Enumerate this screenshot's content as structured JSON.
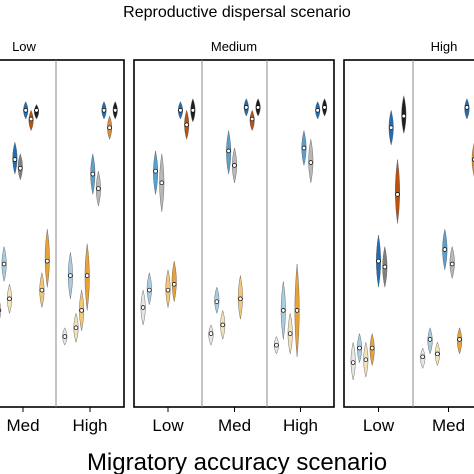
{
  "chart_data": {
    "type": "violin",
    "title": "Reproductive dispersal scenario",
    "xlabel": "Migratory accuracy scenario",
    "ylabel": "",
    "grid": false,
    "legend": "none",
    "series_colors": [
      "#1f1f1f",
      "#808080",
      "#b8b8b8",
      "#e6e6e6",
      "#1f6eb3",
      "#5aa0cc",
      "#a8cde0",
      "#e8a23a",
      "#f2c77a",
      "#f3e3b8",
      "#b8520c",
      "#d98a3c"
    ],
    "panels": [
      {
        "name": "Low",
        "subpanels": [
          {
            "name": "Med",
            "violins": [
              {
                "color": "#e6e6e6",
                "median": 0.24,
                "lo": 0.2,
                "hi": 0.28
              },
              {
                "color": "#a8cde0",
                "median": 0.4,
                "lo": 0.34,
                "hi": 0.46
              },
              {
                "color": "#f3e3b8",
                "median": 0.28,
                "lo": 0.23,
                "hi": 0.33
              },
              {
                "color": "#1f6eb3",
                "median": 0.76,
                "lo": 0.71,
                "hi": 0.82
              },
              {
                "color": "#808080",
                "median": 0.73,
                "lo": 0.69,
                "hi": 0.78
              },
              {
                "color": "#1f6eb3",
                "median": 0.93,
                "lo": 0.9,
                "hi": 0.96
              },
              {
                "color": "#b8520c",
                "median": 0.9,
                "lo": 0.86,
                "hi": 0.93
              },
              {
                "color": "#1f1f1f",
                "median": 0.93,
                "lo": 0.9,
                "hi": 0.95
              },
              {
                "color": "#f2c77a",
                "median": 0.31,
                "lo": 0.25,
                "hi": 0.37
              },
              {
                "color": "#e8a23a",
                "median": 0.41,
                "lo": 0.32,
                "hi": 0.52
              }
            ]
          },
          {
            "name": "High",
            "violins": [
              {
                "color": "#e6e6e6",
                "median": 0.15,
                "lo": 0.12,
                "hi": 0.18
              },
              {
                "color": "#a8cde0",
                "median": 0.36,
                "lo": 0.28,
                "hi": 0.44
              },
              {
                "color": "#f3e3b8",
                "median": 0.18,
                "lo": 0.13,
                "hi": 0.23
              },
              {
                "color": "#f2c77a",
                "median": 0.24,
                "lo": 0.17,
                "hi": 0.31
              },
              {
                "color": "#e8a23a",
                "median": 0.36,
                "lo": 0.24,
                "hi": 0.47
              },
              {
                "color": "#5aa0cc",
                "median": 0.71,
                "lo": 0.64,
                "hi": 0.78
              },
              {
                "color": "#b8b8b8",
                "median": 0.66,
                "lo": 0.6,
                "hi": 0.72
              },
              {
                "color": "#1f6eb3",
                "median": 0.93,
                "lo": 0.9,
                "hi": 0.96
              },
              {
                "color": "#d98a3c",
                "median": 0.87,
                "lo": 0.83,
                "hi": 0.91
              },
              {
                "color": "#1f1f1f",
                "median": 0.93,
                "lo": 0.9,
                "hi": 0.96
              }
            ]
          }
        ]
      },
      {
        "name": "Medium",
        "subpanels": [
          {
            "name": "Low",
            "violins": [
              {
                "color": "#e6e6e6",
                "median": 0.25,
                "lo": 0.19,
                "hi": 0.31
              },
              {
                "color": "#a8cde0",
                "median": 0.31,
                "lo": 0.26,
                "hi": 0.37
              },
              {
                "color": "#5aa0cc",
                "median": 0.72,
                "lo": 0.64,
                "hi": 0.79
              },
              {
                "color": "#b8b8b8",
                "median": 0.68,
                "lo": 0.58,
                "hi": 0.78
              },
              {
                "color": "#f2c77a",
                "median": 0.31,
                "lo": 0.25,
                "hi": 0.38
              },
              {
                "color": "#e8a23a",
                "median": 0.33,
                "lo": 0.27,
                "hi": 0.41
              },
              {
                "color": "#1f6eb3",
                "median": 0.93,
                "lo": 0.9,
                "hi": 0.96
              },
              {
                "color": "#b8520c",
                "median": 0.88,
                "lo": 0.83,
                "hi": 0.93
              },
              {
                "color": "#1f1f1f",
                "median": 0.93,
                "lo": 0.89,
                "hi": 0.97
              }
            ]
          },
          {
            "name": "Med",
            "violins": [
              {
                "color": "#e6e6e6",
                "median": 0.16,
                "lo": 0.12,
                "hi": 0.19
              },
              {
                "color": "#a8cde0",
                "median": 0.27,
                "lo": 0.23,
                "hi": 0.32
              },
              {
                "color": "#f3e3b8",
                "median": 0.19,
                "lo": 0.14,
                "hi": 0.24
              },
              {
                "color": "#5aa0cc",
                "median": 0.79,
                "lo": 0.71,
                "hi": 0.86
              },
              {
                "color": "#b8b8b8",
                "median": 0.74,
                "lo": 0.68,
                "hi": 0.8
              },
              {
                "color": "#f2c77a",
                "median": 0.28,
                "lo": 0.21,
                "hi": 0.36
              },
              {
                "color": "#1f6eb3",
                "median": 0.94,
                "lo": 0.91,
                "hi": 0.97
              },
              {
                "color": "#b8520c",
                "median": 0.9,
                "lo": 0.86,
                "hi": 0.93
              },
              {
                "color": "#1f1f1f",
                "median": 0.94,
                "lo": 0.91,
                "hi": 0.97
              }
            ]
          },
          {
            "name": "High",
            "violins": [
              {
                "color": "#e6e6e6",
                "median": 0.12,
                "lo": 0.09,
                "hi": 0.15
              },
              {
                "color": "#a8cde0",
                "median": 0.24,
                "lo": 0.14,
                "hi": 0.34
              },
              {
                "color": "#f3e3b8",
                "median": 0.16,
                "lo": 0.09,
                "hi": 0.23
              },
              {
                "color": "#e8a23a",
                "median": 0.24,
                "lo": 0.08,
                "hi": 0.4
              },
              {
                "color": "#5aa0cc",
                "median": 0.8,
                "lo": 0.74,
                "hi": 0.86
              },
              {
                "color": "#b8b8b8",
                "median": 0.75,
                "lo": 0.68,
                "hi": 0.83
              },
              {
                "color": "#1f6eb3",
                "median": 0.93,
                "lo": 0.9,
                "hi": 0.96
              },
              {
                "color": "#1f1f1f",
                "median": 0.94,
                "lo": 0.91,
                "hi": 0.97
              }
            ]
          }
        ]
      },
      {
        "name": "High",
        "subpanels": [
          {
            "name": "Low",
            "violins": [
              {
                "color": "#e6e6e6",
                "median": 0.06,
                "lo": 0.0,
                "hi": 0.13
              },
              {
                "color": "#a8cde0",
                "median": 0.11,
                "lo": 0.06,
                "hi": 0.16
              },
              {
                "color": "#f3e3b8",
                "median": 0.07,
                "lo": 0.01,
                "hi": 0.13
              },
              {
                "color": "#e8a23a",
                "median": 0.11,
                "lo": 0.05,
                "hi": 0.16
              },
              {
                "color": "#1f6eb3",
                "median": 0.41,
                "lo": 0.32,
                "hi": 0.5
              },
              {
                "color": "#808080",
                "median": 0.39,
                "lo": 0.32,
                "hi": 0.46
              },
              {
                "color": "#1f6eb3",
                "median": 0.87,
                "lo": 0.81,
                "hi": 0.93
              },
              {
                "color": "#b8520c",
                "median": 0.64,
                "lo": 0.54,
                "hi": 0.76
              },
              {
                "color": "#1f1f1f",
                "median": 0.91,
                "lo": 0.85,
                "hi": 0.98
              }
            ]
          },
          {
            "name": "Med",
            "violins": [
              {
                "color": "#e6e6e6",
                "median": 0.08,
                "lo": 0.04,
                "hi": 0.11
              },
              {
                "color": "#a8cde0",
                "median": 0.14,
                "lo": 0.09,
                "hi": 0.18
              },
              {
                "color": "#f3e3b8",
                "median": 0.09,
                "lo": 0.05,
                "hi": 0.13
              },
              {
                "color": "#5aa0cc",
                "median": 0.45,
                "lo": 0.38,
                "hi": 0.52
              },
              {
                "color": "#b8b8b8",
                "median": 0.4,
                "lo": 0.35,
                "hi": 0.46
              },
              {
                "color": "#e8a23a",
                "median": 0.14,
                "lo": 0.09,
                "hi": 0.18
              },
              {
                "color": "#1f6eb3",
                "median": 0.94,
                "lo": 0.9,
                "hi": 0.97
              },
              {
                "color": "#d98a3c",
                "median": 0.76,
                "lo": 0.7,
                "hi": 0.82
              }
            ]
          }
        ]
      }
    ]
  }
}
